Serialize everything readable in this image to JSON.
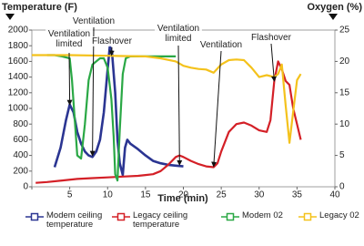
{
  "chart_data": {
    "type": "line",
    "y_label": "Temperature (F)",
    "y2_label": "Oxygen (%)",
    "x_label": "Time (min)",
    "xlim": [
      0,
      40
    ],
    "xticks": [
      0,
      5,
      10,
      15,
      20,
      25,
      30,
      35,
      40
    ],
    "ylim": [
      0,
      2000
    ],
    "yticks": [
      0,
      200,
      400,
      600,
      800,
      1000,
      1200,
      1400,
      1600,
      1800,
      2000
    ],
    "y2lim": [
      0,
      25
    ],
    "y2ticks": [
      0,
      5,
      10,
      15,
      20,
      25
    ],
    "series": [
      {
        "name": "Modem ceiling temperature",
        "color": "#2b3592",
        "x": [
          3,
          3.8,
          4.5,
          5,
          5.5,
          6,
          6.5,
          7,
          7.5,
          8,
          8.5,
          9,
          9.5,
          10,
          10.3,
          10.6,
          11,
          11.3,
          11.6,
          12,
          12.3,
          12.6,
          13,
          14,
          15,
          16,
          17,
          18,
          19,
          20
        ],
        "values": [
          250,
          500,
          850,
          1050,
          950,
          700,
          550,
          450,
          400,
          380,
          450,
          600,
          950,
          1500,
          1800,
          1700,
          1200,
          600,
          300,
          150,
          500,
          600,
          550,
          480,
          400,
          330,
          300,
          280,
          270,
          260
        ]
      },
      {
        "name": "Legacy ceiling temperature",
        "color": "#d42027",
        "x": [
          0.5,
          2,
          4,
          6,
          8,
          10,
          12,
          14,
          15,
          16,
          17,
          18,
          19,
          19.5,
          20,
          21,
          22,
          23,
          24,
          24.5,
          25,
          26,
          27,
          28,
          29,
          30,
          31,
          31.5,
          32,
          32.5,
          33,
          33.5,
          34,
          34.5,
          35,
          35.5
        ],
        "values": [
          50,
          60,
          80,
          100,
          110,
          120,
          130,
          140,
          150,
          160,
          200,
          280,
          380,
          400,
          380,
          330,
          290,
          260,
          250,
          300,
          450,
          700,
          800,
          820,
          780,
          720,
          700,
          850,
          1350,
          1600,
          1500,
          1350,
          1300,
          1000,
          800,
          600
        ]
      },
      {
        "name": "Modem 02",
        "color": "#2aa845",
        "axis": "y2",
        "x": [
          2,
          3,
          4,
          5,
          5.3,
          5.7,
          6,
          6.5,
          7,
          7.5,
          8,
          9,
          9.5,
          10,
          10.5,
          10.8,
          11,
          11.3,
          11.6,
          12,
          12.4,
          13,
          15,
          17,
          19
        ],
        "values": [
          21,
          21,
          20.8,
          20.5,
          17,
          10,
          5,
          4.5,
          10,
          17,
          19.5,
          20.5,
          20.5,
          19,
          14,
          8,
          2,
          1,
          9,
          18,
          20.5,
          20.8,
          20.8,
          20.8,
          20.8
        ]
      },
      {
        "name": "Legacy 02",
        "color": "#f4c21c",
        "axis": "y2",
        "x": [
          0,
          5,
          10,
          15,
          17,
          19,
          20,
          21,
          22,
          23,
          24,
          25,
          26,
          27,
          28,
          29,
          30,
          31,
          32,
          32.5,
          33,
          33.5,
          34,
          34.5,
          35,
          35.5
        ],
        "values": [
          21,
          21,
          20.9,
          20.8,
          20.5,
          20,
          19.3,
          19,
          18.8,
          18.7,
          18.2,
          19.5,
          20.2,
          20.3,
          20.2,
          19,
          17.5,
          17.8,
          17.5,
          18,
          19.5,
          13,
          7,
          12,
          17,
          18
        ]
      }
    ],
    "annotations": [
      {
        "text": "Ventilation limited",
        "x": 5,
        "y": 1050
      },
      {
        "text": "Ventilation",
        "x": 8,
        "y": 400
      },
      {
        "text": "Flashover",
        "x": 10.5,
        "y": 1680
      },
      {
        "text": "Ventilation limited",
        "x": 19.5,
        "y": 280
      },
      {
        "text": "Ventilation",
        "x": 24,
        "y": 260
      },
      {
        "text": "Flashover",
        "x": 32,
        "y": 1350
      }
    ]
  }
}
